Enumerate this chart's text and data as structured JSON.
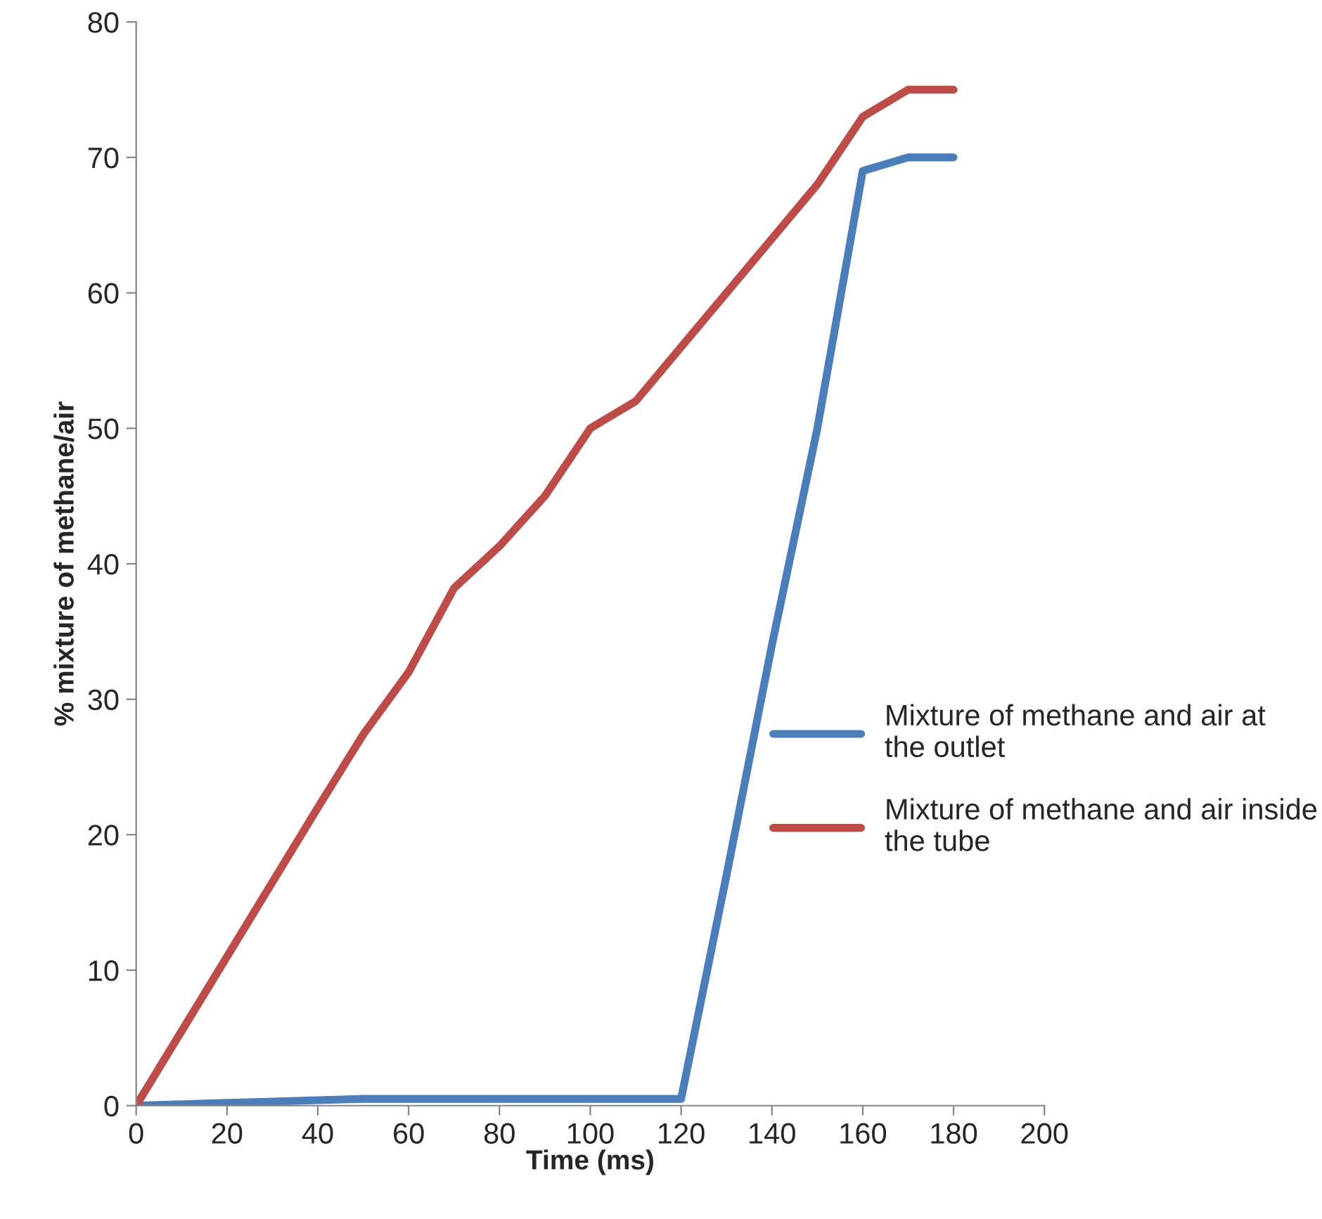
{
  "chart_data": {
    "type": "line",
    "xlabel": "Time (ms)",
    "ylabel": "% mixture of methane/air",
    "x": [
      0,
      10,
      20,
      30,
      40,
      50,
      60,
      70,
      80,
      90,
      100,
      110,
      120,
      130,
      140,
      150,
      160,
      170,
      180
    ],
    "series": [
      {
        "name": "Mixture of methane and air at the outlet",
        "color": "#4a7ebb",
        "values": [
          0,
          0.1,
          0.2,
          0.3,
          0.4,
          0.5,
          0.5,
          0.5,
          0.5,
          0.5,
          0.5,
          0.5,
          0.5,
          17,
          34,
          50,
          69,
          70,
          70
        ]
      },
      {
        "name": "Mixture of methane and air inside the tube",
        "color": "#be4b48",
        "values": [
          0,
          5.5,
          11,
          16.5,
          22,
          27.4,
          32,
          38.2,
          41.3,
          45,
          50,
          52,
          56,
          60,
          64,
          68,
          73,
          75,
          75
        ]
      }
    ],
    "xlim": [
      0,
      200
    ],
    "xticks": [
      0,
      20,
      40,
      60,
      80,
      100,
      120,
      140,
      160,
      180,
      200
    ],
    "ylim": [
      0,
      80
    ],
    "yticks": [
      0,
      10,
      20,
      30,
      40,
      50,
      60,
      70,
      80
    ],
    "grid": false,
    "legend": "center right",
    "marker": "none",
    "line_style": "solid"
  }
}
